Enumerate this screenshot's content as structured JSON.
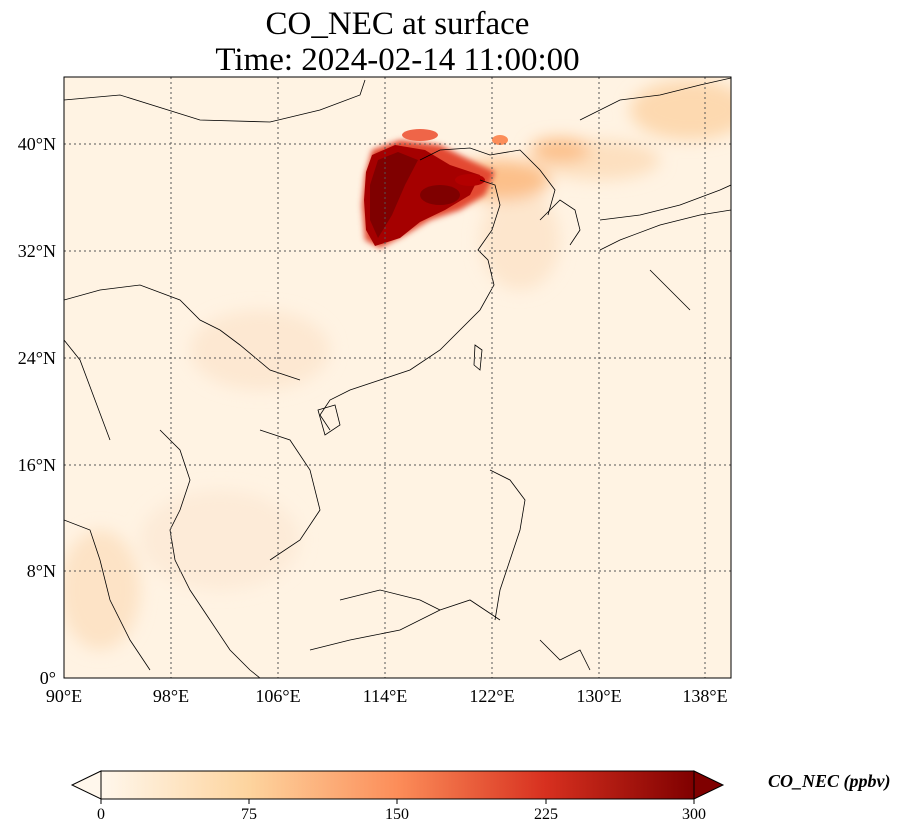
{
  "title_line1": "CO_NEC at surface",
  "title_line2": "Time: 2024-02-14 11:00:00",
  "lat_ticks": [
    "0°",
    "8°N",
    "16°N",
    "24°N",
    "32°N",
    "40°N"
  ],
  "lon_ticks": [
    "90°E",
    "98°E",
    "106°E",
    "114°E",
    "122°E",
    "130°E",
    "138°E"
  ],
  "colorbar": {
    "label": "CO_NEC (ppbv)",
    "ticks": [
      "0",
      "75",
      "150",
      "225",
      "300"
    ],
    "colormap": "OrRd",
    "extend": "both",
    "range": [
      0,
      300
    ]
  },
  "map": {
    "extent_lon": [
      90,
      140
    ],
    "extent_lat": [
      0,
      45
    ],
    "gridlines": "dotted",
    "hotspot_region": "North China Plain (max > 300 ppbv)"
  }
}
